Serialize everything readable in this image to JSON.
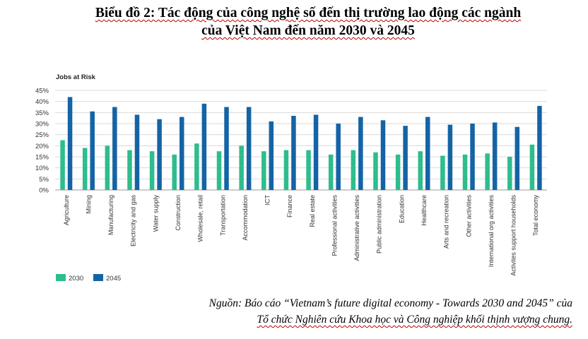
{
  "header": {
    "title_line1": "Biểu đồ 2: Tác động của công nghệ số đến thị trường lao động các ngành",
    "title_line2": "của Việt Nam đến năm 2030 và 2045"
  },
  "footer": {
    "source_line1": "Nguồn: Báo cáo “Vietnam’s future digital economy - Towards 2030 and 2045” của",
    "source_line2": "Tổ chức Nghiên cứu Khoa học và Công nghiệp khối thịnh vượng chung."
  },
  "chart_data": {
    "type": "bar",
    "title": "Jobs at Risk",
    "xlabel": "",
    "ylabel": "",
    "ylim": [
      0,
      45
    ],
    "y_ticks": [
      "0%",
      "5%",
      "10%",
      "15%",
      "20%",
      "25%",
      "30%",
      "35%",
      "40%",
      "45%"
    ],
    "grid": true,
    "legend_position": "bottom-left",
    "categories": [
      "Agriculture",
      "Mining",
      "Manufacturing",
      "Electricity and gas",
      "Water supply",
      "Construction",
      "Wholesale, retail",
      "Transportation",
      "Accommodation",
      "ICT",
      "Finance",
      "Real estate",
      "Professional activities",
      "Administrative activities",
      "Public administration",
      "Education",
      "Healthcare",
      "Arts and recreation",
      "Other activities",
      "International org activities",
      "Activites support households",
      "Total economy"
    ],
    "series": [
      {
        "name": "2030",
        "color": "#2ebd8c",
        "values": [
          22.5,
          19,
          20,
          18,
          17.5,
          16,
          21,
          17.5,
          20,
          17.5,
          18,
          18,
          16,
          18,
          17,
          16,
          17.5,
          15.5,
          16,
          16.5,
          15,
          20.5
        ]
      },
      {
        "name": "2045",
        "color": "#1464a5",
        "values": [
          42,
          35.5,
          37.5,
          34,
          32,
          33,
          39,
          37.5,
          37.5,
          31,
          33.5,
          34,
          30,
          33,
          31.5,
          29,
          33,
          29.5,
          30,
          30.5,
          28.5,
          38
        ]
      }
    ]
  }
}
